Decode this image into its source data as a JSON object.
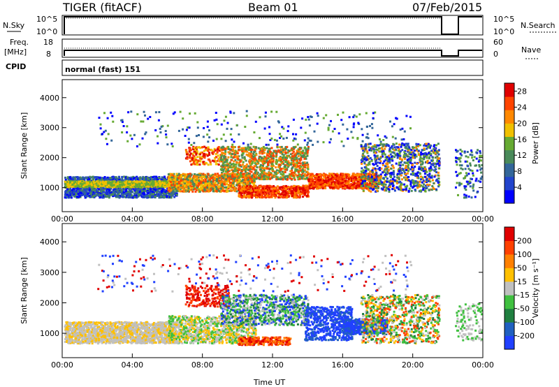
{
  "header": {
    "station": "TIGER (fitACF)",
    "beam": "Beam 01",
    "date": "07/Feb/2015"
  },
  "strips": {
    "nsky_label": "N.Sky",
    "nsky_ticks": [
      "10^5",
      "10^0"
    ],
    "nsearch_label": "N.Search",
    "nsearch_ticks": [
      "10^5",
      "10^0"
    ],
    "freq_label": "Freq.",
    "freq_unit": "[MHz]",
    "freq_ticks": [
      "18",
      "8"
    ],
    "nave_label": "Nave",
    "nave_ticks": [
      "60",
      "0"
    ],
    "cpid_label": "CPID",
    "cpid_value": "normal (fast) 151"
  },
  "colors": {
    "power_scale": [
      "#0000ff",
      "#2244cc",
      "#336699",
      "#4a8a5a",
      "#66aa33",
      "#f0c000",
      "#ff8800",
      "#ff4400",
      "#e00000"
    ],
    "velocity_scale": [
      "#2040ff",
      "#2060c0",
      "#208040",
      "#40c040",
      "#c0c0c0",
      "#ffc000",
      "#ff8000",
      "#ff4000",
      "#e00000"
    ]
  },
  "chart_data": [
    {
      "type": "heatmap",
      "panel": "power",
      "ylabel": "Slant Range [km]",
      "ylim": [
        200,
        4600
      ],
      "yticks": [
        "1000",
        "2000",
        "3000",
        "4000"
      ],
      "xticks": [
        "00:00",
        "04:00",
        "08:00",
        "12:00",
        "16:00",
        "20:00",
        "00:00"
      ],
      "xlim_hours": [
        0,
        24
      ],
      "colorbar_label": "Power [dB]",
      "colorbar_ticks": [
        "4",
        "8",
        "12",
        "16",
        "20",
        "24",
        "28"
      ],
      "colorbar_range": [
        0,
        30
      ],
      "data_gap_hours": [
        [
          21.6,
          22.4
        ]
      ]
    },
    {
      "type": "heatmap",
      "panel": "velocity",
      "ylabel": "Slant Range [km]",
      "ylim": [
        200,
        4600
      ],
      "yticks": [
        "1000",
        "2000",
        "3000",
        "4000"
      ],
      "xticks": [
        "00:00",
        "04:00",
        "08:00",
        "12:00",
        "16:00",
        "20:00",
        "00:00"
      ],
      "xlabel": "Time UT",
      "xlim_hours": [
        0,
        24
      ],
      "colorbar_label": "Velocity [m s⁻¹]",
      "colorbar_ticks": [
        "200",
        "100",
        "50",
        "15",
        "-15",
        "-50",
        "-100",
        "-200"
      ],
      "colorbar_range": [
        -250,
        250
      ],
      "data_gap_hours": [
        [
          21.6,
          22.4
        ]
      ]
    }
  ]
}
